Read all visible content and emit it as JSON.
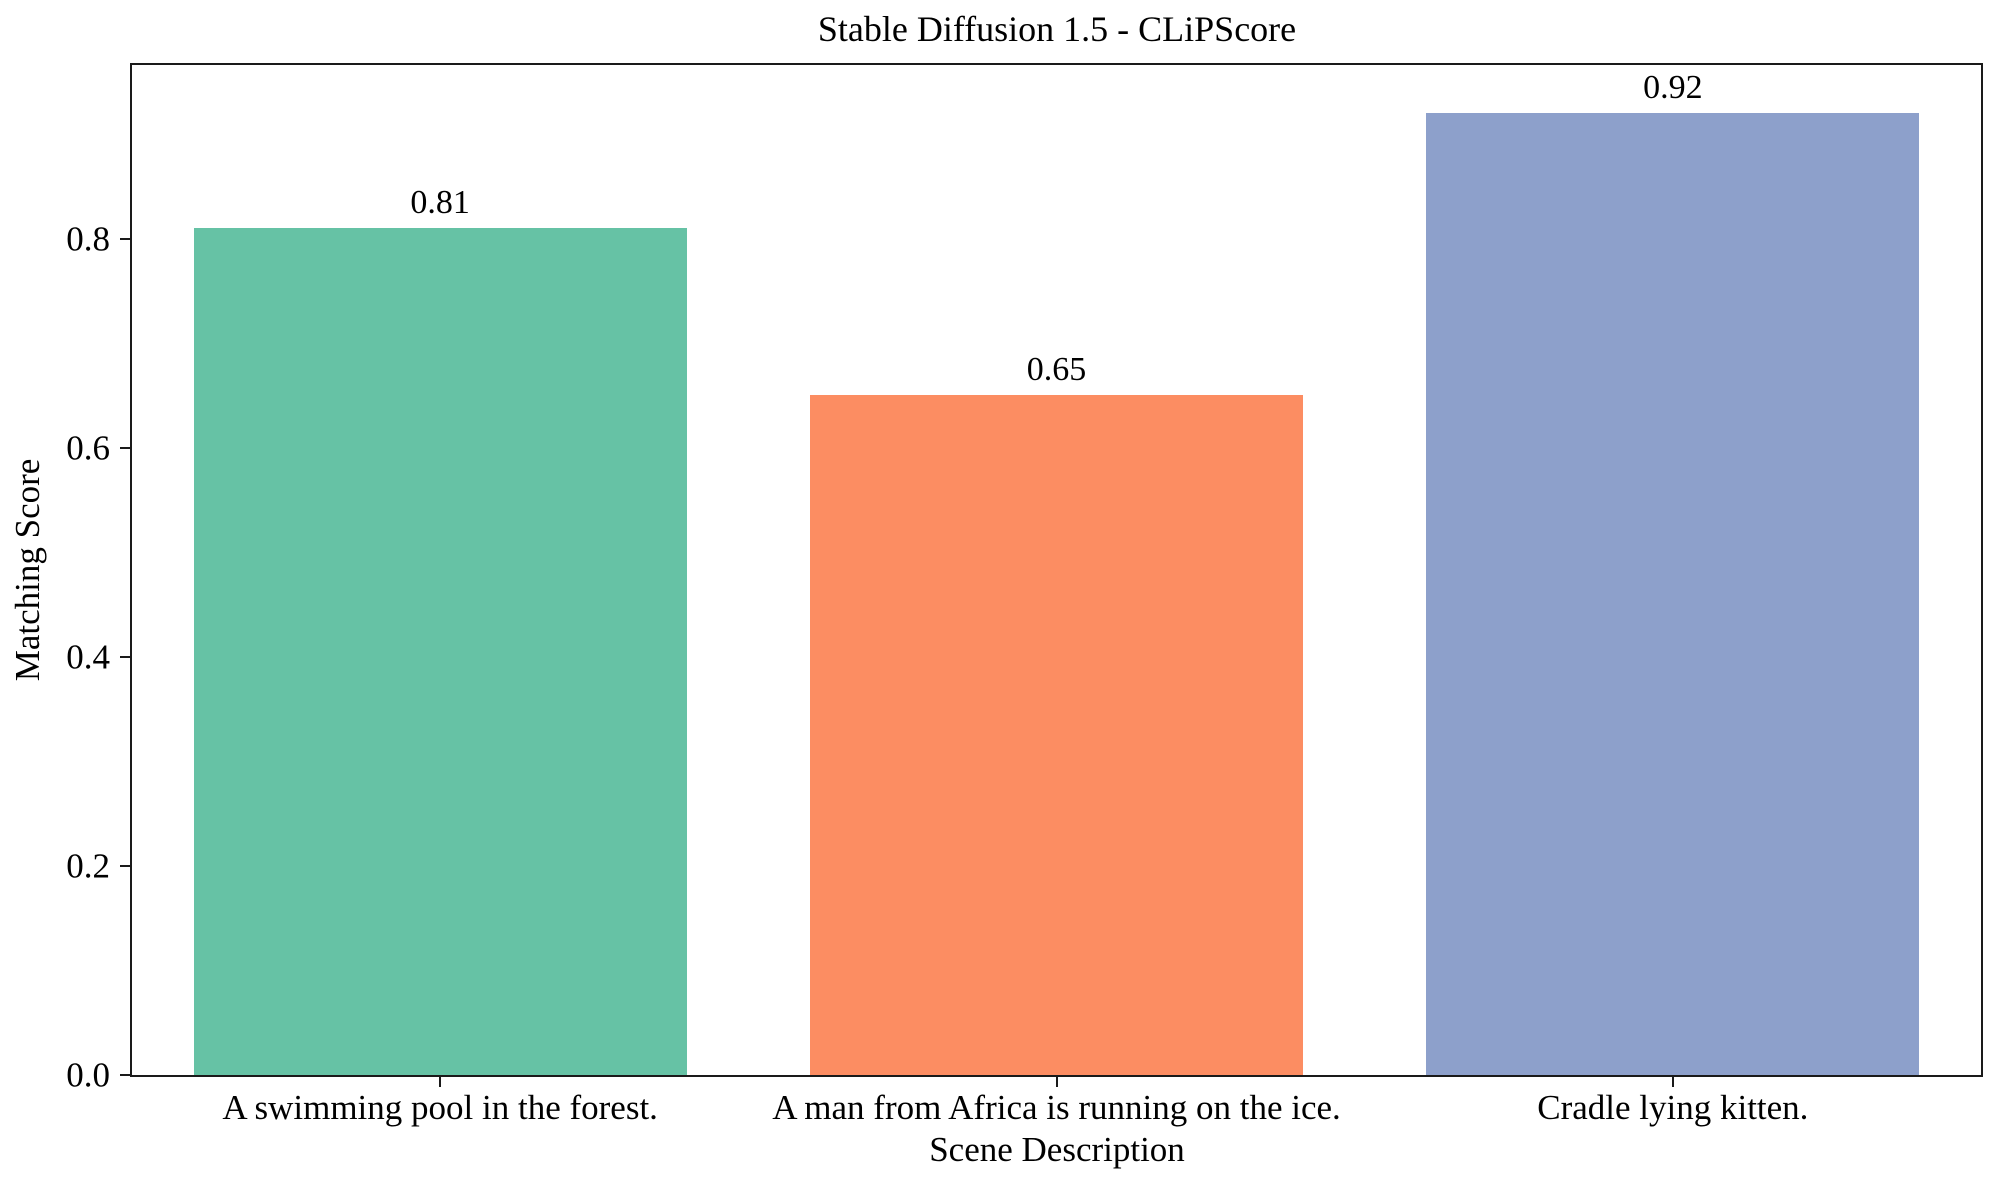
{
  "figure": {
    "background": "#ffffff",
    "frame_color": "#1a1a1a"
  },
  "chart_data": {
    "type": "bar",
    "title": "Stable Diffusion 1.5 - CLiPScore",
    "xlabel": "Scene Description",
    "ylabel": "Matching Score",
    "categories": [
      "A swimming pool in the forest.",
      "A man from Africa is running on the ice.",
      "Cradle lying kitten."
    ],
    "values": [
      0.81,
      0.65,
      0.92
    ],
    "bar_labels": [
      "0.81",
      "0.65",
      "0.92"
    ],
    "bar_colors": [
      "#66c2a5",
      "#fc8d62",
      "#8da0cb"
    ],
    "ylim": [
      0,
      0.966
    ],
    "yticks": [
      0.0,
      0.2,
      0.4,
      0.6,
      0.8
    ],
    "ytick_labels": [
      "0.0",
      "0.2",
      "0.4",
      "0.6",
      "0.8"
    ],
    "bar_width_fraction": 0.8,
    "grid": false,
    "legend": "none"
  }
}
